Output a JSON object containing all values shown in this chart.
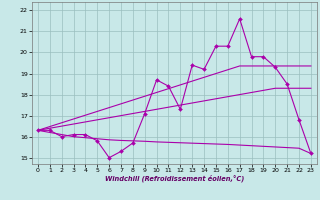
{
  "x": [
    0,
    1,
    2,
    3,
    4,
    5,
    6,
    7,
    8,
    9,
    10,
    11,
    12,
    13,
    14,
    15,
    16,
    17,
    18,
    19,
    20,
    21,
    22,
    23
  ],
  "y_main": [
    16.3,
    16.3,
    16.0,
    16.1,
    16.1,
    15.8,
    15.0,
    15.3,
    15.7,
    17.1,
    18.7,
    18.4,
    17.3,
    19.4,
    19.2,
    20.3,
    20.3,
    21.6,
    19.8,
    19.8,
    19.3,
    18.5,
    16.8,
    15.2
  ],
  "y_trend1": [
    16.3,
    16.48,
    16.66,
    16.84,
    17.02,
    17.2,
    17.38,
    17.56,
    17.74,
    17.92,
    18.1,
    18.28,
    18.46,
    18.64,
    18.82,
    19.0,
    19.18,
    19.36,
    19.36,
    19.36,
    19.36,
    19.36,
    19.36,
    19.36
  ],
  "y_trend2": [
    16.3,
    16.4,
    16.5,
    16.6,
    16.7,
    16.8,
    16.9,
    17.0,
    17.1,
    17.2,
    17.3,
    17.4,
    17.5,
    17.6,
    17.7,
    17.8,
    17.9,
    18.0,
    18.1,
    18.2,
    18.3,
    18.3,
    18.3,
    18.3
  ],
  "y_bottom": [
    16.3,
    16.2,
    16.1,
    16.0,
    15.95,
    15.9,
    15.85,
    15.82,
    15.8,
    15.78,
    15.75,
    15.73,
    15.71,
    15.69,
    15.67,
    15.65,
    15.63,
    15.6,
    15.57,
    15.54,
    15.51,
    15.48,
    15.45,
    15.2
  ],
  "color": "#aa00aa",
  "bg_color": "#c8e8e8",
  "grid_color": "#9bbfbf",
  "xlabel": "Windchill (Refroidissement éolien,°C)",
  "xlim": [
    -0.5,
    23.5
  ],
  "ylim": [
    14.7,
    22.4
  ],
  "yticks": [
    15,
    16,
    17,
    18,
    19,
    20,
    21,
    22
  ],
  "xticks": [
    0,
    1,
    2,
    3,
    4,
    5,
    6,
    7,
    8,
    9,
    10,
    11,
    12,
    13,
    14,
    15,
    16,
    17,
    18,
    19,
    20,
    21,
    22,
    23
  ]
}
